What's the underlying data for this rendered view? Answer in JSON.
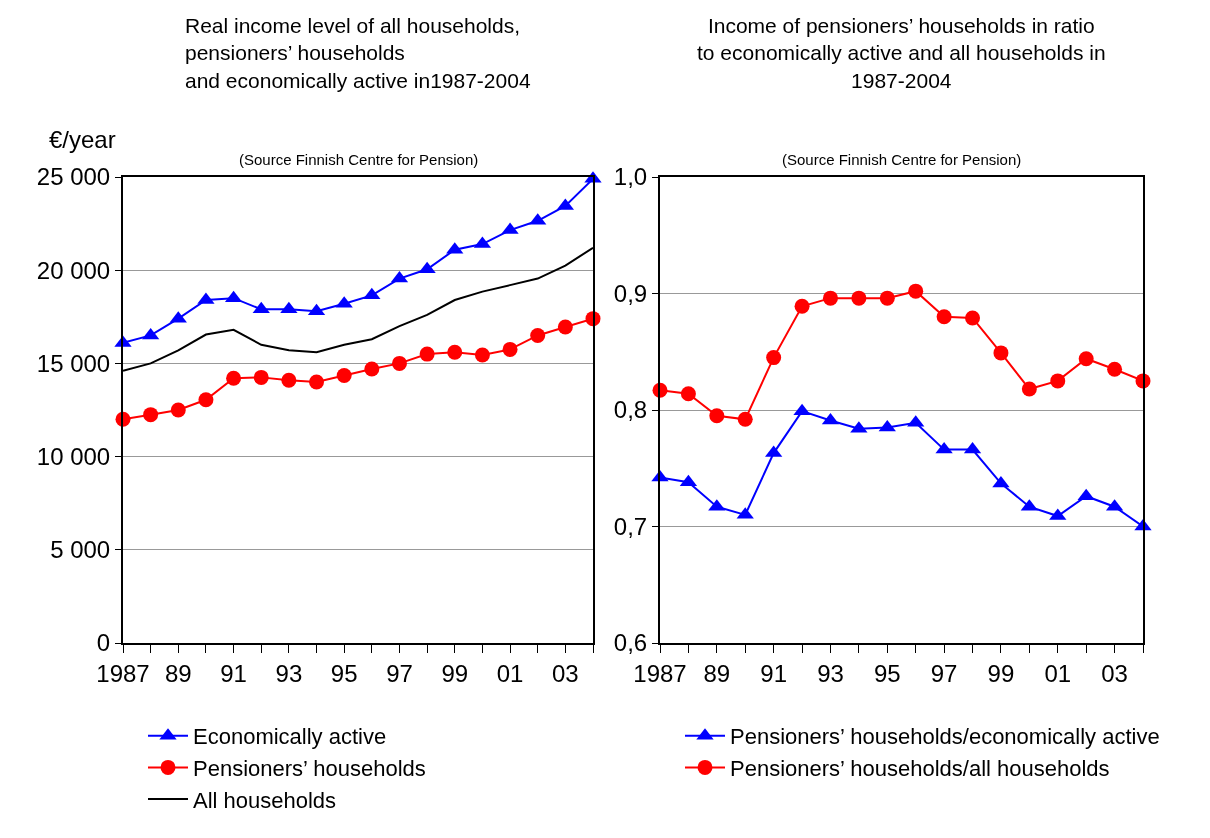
{
  "chart_data": [
    {
      "type": "line",
      "title": "Real income level of all households,\npensioners’ households\nand economically active in1987-2004",
      "subtitle": "(Source Finnish Centre for Pension)",
      "ylabel": "€/year",
      "x": [
        1987,
        1988,
        1989,
        1990,
        1991,
        1992,
        1993,
        1994,
        1995,
        1996,
        1997,
        1998,
        1999,
        2000,
        2001,
        2002,
        2003,
        2004
      ],
      "series": [
        {
          "name": "Economically active",
          "color": "#0000ff",
          "marker": "triangle",
          "values": [
            16100,
            16500,
            17400,
            18400,
            18500,
            17900,
            17900,
            17800,
            18200,
            18650,
            19550,
            20050,
            21100,
            21400,
            22150,
            22650,
            23450,
            24900
          ]
        },
        {
          "name": "Pensioners’ households",
          "color": "#ff0000",
          "marker": "circle",
          "values": [
            12000,
            12250,
            12500,
            13050,
            14200,
            14250,
            14100,
            14000,
            14350,
            14700,
            15000,
            15500,
            15600,
            15450,
            15750,
            16500,
            16950,
            17400
          ]
        },
        {
          "name": "All households",
          "color": "#000000",
          "marker": "none",
          "values": [
            14600,
            15000,
            15700,
            16550,
            16800,
            16000,
            15700,
            15600,
            16000,
            16300,
            17000,
            17600,
            18400,
            18850,
            19200,
            19550,
            20250,
            21200
          ]
        }
      ],
      "xlim": [
        1987,
        2004
      ],
      "xticks": [
        {
          "value": 1987,
          "label": "1987"
        },
        {
          "value": 1988,
          "label": null
        },
        {
          "value": 1989,
          "label": "89"
        },
        {
          "value": 1990,
          "label": null
        },
        {
          "value": 1991,
          "label": "91"
        },
        {
          "value": 1992,
          "label": null
        },
        {
          "value": 1993,
          "label": "93"
        },
        {
          "value": 1994,
          "label": null
        },
        {
          "value": 1995,
          "label": "95"
        },
        {
          "value": 1996,
          "label": null
        },
        {
          "value": 1997,
          "label": "97"
        },
        {
          "value": 1998,
          "label": null
        },
        {
          "value": 1999,
          "label": "99"
        },
        {
          "value": 2000,
          "label": null
        },
        {
          "value": 2001,
          "label": "01"
        },
        {
          "value": 2002,
          "label": null
        },
        {
          "value": 2003,
          "label": "03"
        },
        {
          "value": 2004,
          "label": null
        }
      ],
      "ylim": [
        0,
        25000
      ],
      "yticks": [
        0,
        {
          "value": 5000,
          "label": "5 000"
        },
        {
          "value": 10000,
          "label": "10 000"
        },
        {
          "value": 15000,
          "label": "15 000"
        },
        {
          "value": 20000,
          "label": "20 000"
        },
        {
          "value": 25000,
          "label": "25 000"
        }
      ],
      "grid": "y",
      "legend": "bottom",
      "line_style": "solid"
    },
    {
      "type": "line",
      "title": "Income of pensioners’ households in ratio\nto economically active and all households in\n1987-2004",
      "subtitle": "(Source Finnish Centre for Pension)",
      "x": [
        1987,
        1988,
        1989,
        1990,
        1991,
        1992,
        1993,
        1994,
        1995,
        1996,
        1997,
        1998,
        1999,
        2000,
        2001,
        2002,
        2003,
        2004
      ],
      "series": [
        {
          "name": "Pensioners’ households/economically active",
          "color": "#0000ff",
          "marker": "triangle",
          "values": [
            0.742,
            0.738,
            0.717,
            0.71,
            0.763,
            0.799,
            0.791,
            0.784,
            0.785,
            0.789,
            0.766,
            0.766,
            0.737,
            0.717,
            0.709,
            0.726,
            0.717,
            0.7
          ]
        },
        {
          "name": "Pensioners’ households/all households",
          "color": "#ff0000",
          "marker": "circle",
          "values": [
            0.817,
            0.814,
            0.795,
            0.792,
            0.845,
            0.889,
            0.896,
            0.896,
            0.896,
            0.902,
            0.88,
            0.879,
            0.849,
            0.818,
            0.825,
            0.844,
            0.835,
            0.825
          ]
        }
      ],
      "xlim": [
        1987,
        2004
      ],
      "xticks": [
        {
          "value": 1987,
          "label": "1987"
        },
        {
          "value": 1988,
          "label": null
        },
        {
          "value": 1989,
          "label": "89"
        },
        {
          "value": 1990,
          "label": null
        },
        {
          "value": 1991,
          "label": "91"
        },
        {
          "value": 1992,
          "label": null
        },
        {
          "value": 1993,
          "label": "93"
        },
        {
          "value": 1994,
          "label": null
        },
        {
          "value": 1995,
          "label": "95"
        },
        {
          "value": 1996,
          "label": null
        },
        {
          "value": 1997,
          "label": "97"
        },
        {
          "value": 1998,
          "label": null
        },
        {
          "value": 1999,
          "label": "99"
        },
        {
          "value": 2000,
          "label": null
        },
        {
          "value": 2001,
          "label": "01"
        },
        {
          "value": 2002,
          "label": null
        },
        {
          "value": 2003,
          "label": "03"
        },
        {
          "value": 2004,
          "label": null
        }
      ],
      "ylim": [
        0.6,
        1.0
      ],
      "yticks": [
        {
          "value": 0.6,
          "label": "0,6"
        },
        {
          "value": 0.7,
          "label": "0,7"
        },
        {
          "value": 0.8,
          "label": "0,8"
        },
        {
          "value": 0.9,
          "label": "0,9"
        },
        {
          "value": 1.0,
          "label": "1,0"
        }
      ],
      "grid": "y",
      "legend": "bottom",
      "line_style": "solid"
    }
  ]
}
